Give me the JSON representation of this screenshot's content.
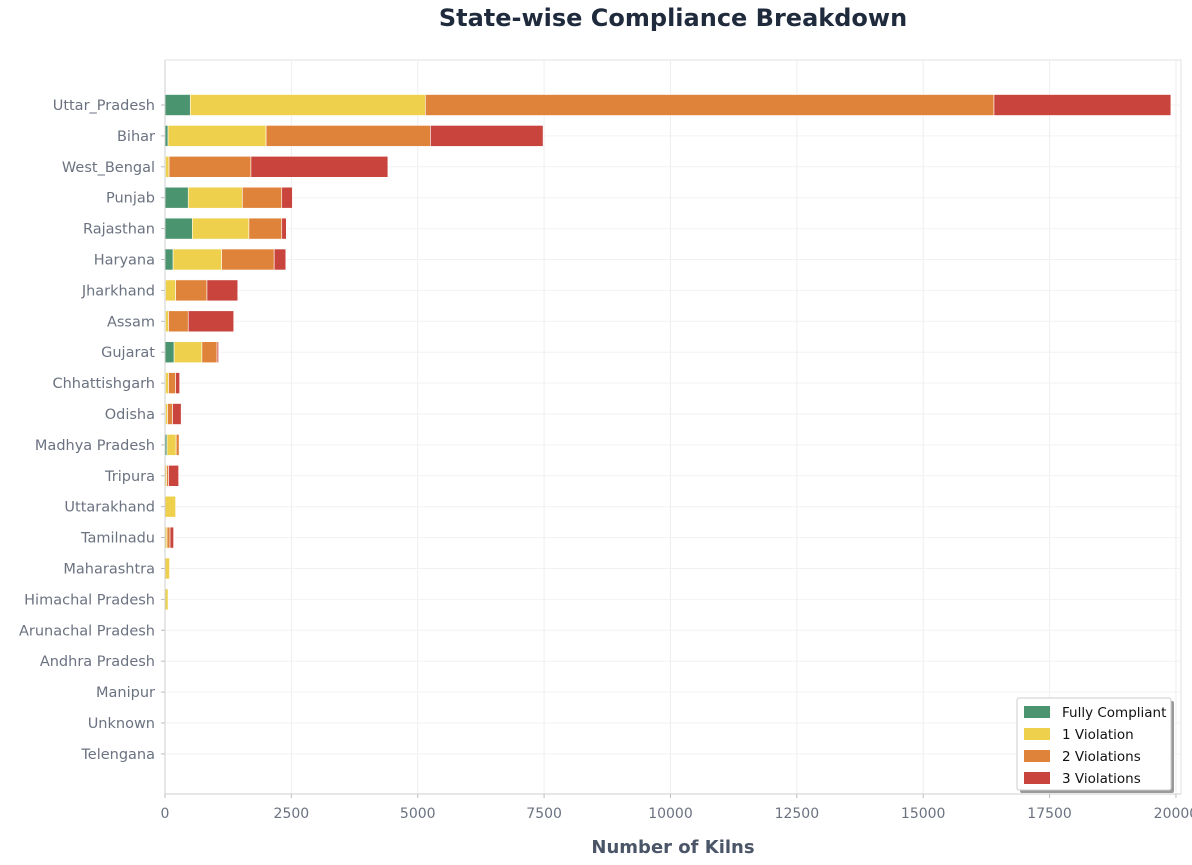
{
  "chart_data": {
    "type": "bar",
    "orientation": "horizontal",
    "stacked": true,
    "title": "State-wise Compliance Breakdown",
    "xlabel": "Number of Kilns",
    "ylabel": "",
    "xlim": [
      0,
      20000
    ],
    "xticks": [
      0,
      2500,
      5000,
      7500,
      10000,
      12500,
      15000,
      17500,
      20000
    ],
    "grid": true,
    "legend_position": "bottom-right",
    "categories": [
      "Uttar_Pradesh",
      "Bihar",
      "West_Bengal",
      "Punjab",
      "Rajasthan",
      "Haryana",
      "Jharkhand",
      "Assam",
      "Gujarat",
      "Chhattishgarh",
      "Odisha",
      "Madhya Pradesh",
      "Tripura",
      "Uttarakhand",
      "Tamilnadu",
      "Maharashtra",
      "Himachal Pradesh",
      "Arunachal Pradesh",
      "Andhra Pradesh",
      "Manipur",
      "Unknown",
      "Telengana"
    ],
    "series": [
      {
        "name": "Fully Compliant",
        "color": "#4a9470",
        "values": [
          500,
          60,
          10,
          460,
          540,
          160,
          10,
          10,
          180,
          10,
          10,
          40,
          0,
          0,
          0,
          0,
          0,
          0,
          0,
          0,
          0,
          0
        ]
      },
      {
        "name": "1 Violation",
        "color": "#eed04c",
        "values": [
          4650,
          1940,
          70,
          1070,
          1120,
          960,
          200,
          60,
          550,
          60,
          40,
          180,
          30,
          210,
          40,
          90,
          60,
          8,
          5,
          2,
          2,
          1
        ]
      },
      {
        "name": "2 Violations",
        "color": "#e0833a",
        "values": [
          11250,
          3250,
          1620,
          780,
          650,
          1040,
          620,
          390,
          300,
          140,
          100,
          60,
          40,
          0,
          60,
          0,
          0,
          0,
          0,
          0,
          0,
          0
        ]
      },
      {
        "name": "3 Violations",
        "color": "#c8443c",
        "values": [
          3500,
          2230,
          2710,
          210,
          90,
          230,
          610,
          900,
          30,
          80,
          170,
          0,
          200,
          0,
          70,
          0,
          0,
          0,
          0,
          0,
          0,
          0
        ]
      }
    ]
  }
}
